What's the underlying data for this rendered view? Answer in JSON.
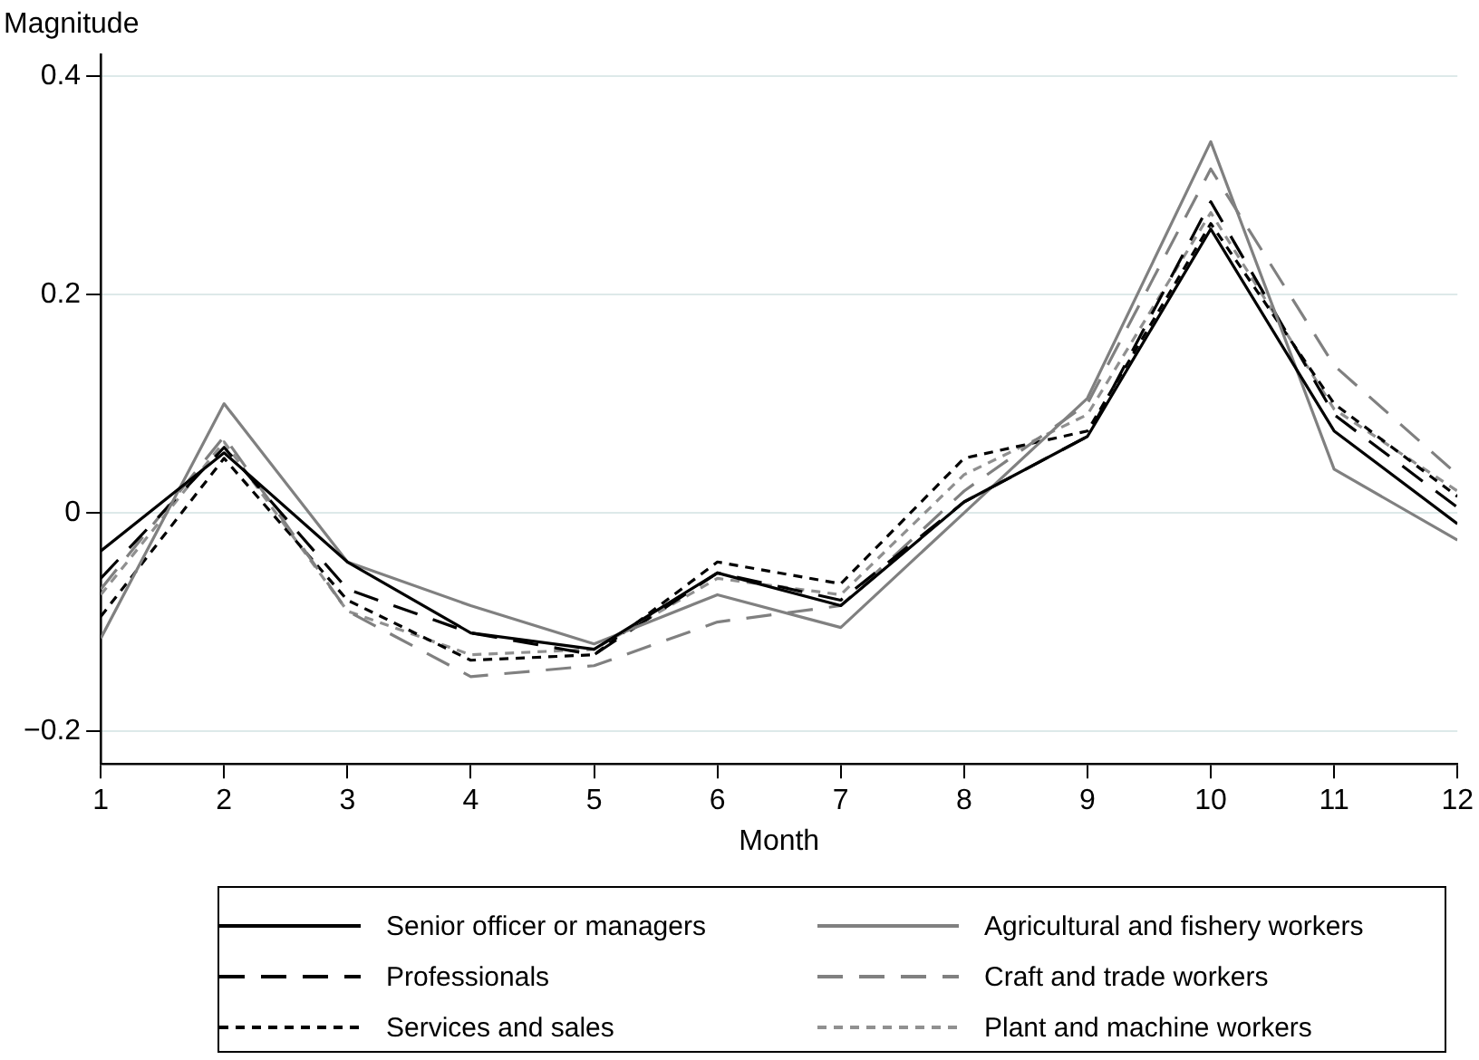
{
  "chart_data": {
    "type": "line",
    "xlabel": "Month",
    "ylabel": "Magnitude",
    "x": [
      1,
      2,
      3,
      4,
      5,
      6,
      7,
      8,
      9,
      10,
      11,
      12
    ],
    "xlim": [
      1,
      12
    ],
    "xticks": [
      1,
      2,
      3,
      4,
      5,
      6,
      7,
      8,
      9,
      10,
      11,
      12
    ],
    "ylim": [
      -0.23,
      0.42
    ],
    "yticks": [
      {
        "value": -0.2,
        "label": "−0.2"
      },
      0,
      0.2,
      0.4
    ],
    "grid": "y",
    "legend": "bottom",
    "marker": "none",
    "series": [
      {
        "name": "Senior officer or managers",
        "color": "#000000",
        "line_style": "solid",
        "values": [
          -0.035,
          0.055,
          -0.045,
          -0.11,
          -0.125,
          -0.055,
          -0.085,
          0.01,
          0.07,
          0.26,
          0.075,
          -0.01
        ]
      },
      {
        "name": "Agricultural and fishery workers",
        "color": "#808080",
        "line_style": "solid",
        "values": [
          -0.115,
          0.1,
          -0.045,
          -0.085,
          -0.12,
          -0.075,
          -0.105,
          0.0,
          0.105,
          0.34,
          0.04,
          -0.025
        ]
      },
      {
        "name": "Professionals",
        "color": "#000000",
        "line_style": "dashed",
        "values": [
          -0.06,
          0.06,
          -0.07,
          -0.11,
          -0.13,
          -0.055,
          -0.08,
          0.01,
          0.07,
          0.285,
          0.09,
          0.005
        ]
      },
      {
        "name": "Craft and trade workers",
        "color": "#808080",
        "line_style": "dashed",
        "values": [
          -0.07,
          0.07,
          -0.09,
          -0.15,
          -0.14,
          -0.1,
          -0.085,
          0.02,
          0.1,
          0.315,
          0.135,
          0.035
        ]
      },
      {
        "name": "Services and sales",
        "color": "#000000",
        "line_style": "dotted",
        "values": [
          -0.095,
          0.05,
          -0.08,
          -0.135,
          -0.13,
          -0.045,
          -0.065,
          0.05,
          0.075,
          0.265,
          0.1,
          0.015
        ]
      },
      {
        "name": "Plant and machine workers",
        "color": "#909090",
        "line_style": "dotted",
        "values": [
          -0.075,
          0.065,
          -0.09,
          -0.13,
          -0.125,
          -0.06,
          -0.075,
          0.035,
          0.09,
          0.275,
          0.095,
          0.02
        ]
      }
    ]
  }
}
